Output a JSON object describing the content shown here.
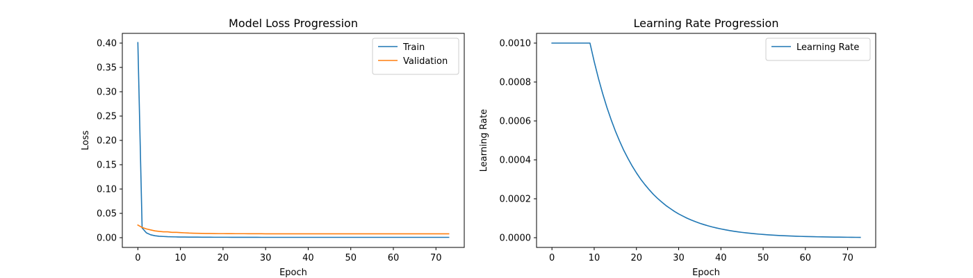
{
  "chart_data": [
    {
      "type": "line",
      "title": "Model Loss Progression",
      "xlabel": "Epoch",
      "ylabel": "Loss",
      "xlim": [
        -3.65,
        76.65
      ],
      "ylim": [
        -0.02,
        0.42
      ],
      "xticks": [
        0,
        10,
        20,
        30,
        40,
        50,
        60,
        70
      ],
      "yticks": [
        0.0,
        0.05,
        0.1,
        0.15,
        0.2,
        0.25,
        0.3,
        0.35,
        0.4
      ],
      "ytick_labels": [
        "0.00",
        "0.05",
        "0.10",
        "0.15",
        "0.20",
        "0.25",
        "0.30",
        "0.35",
        "0.40"
      ],
      "grid": false,
      "legend": "top-right",
      "x": [
        0,
        1,
        2,
        3,
        4,
        5,
        6,
        7,
        8,
        9,
        10,
        11,
        12,
        13,
        14,
        15,
        16,
        17,
        18,
        19,
        20,
        21,
        22,
        23,
        24,
        25,
        26,
        27,
        28,
        29,
        30,
        31,
        32,
        33,
        34,
        35,
        36,
        37,
        38,
        39,
        40,
        41,
        42,
        43,
        44,
        45,
        46,
        47,
        48,
        49,
        50,
        51,
        52,
        53,
        54,
        55,
        56,
        57,
        58,
        59,
        60,
        61,
        62,
        63,
        64,
        65,
        66,
        67,
        68,
        69,
        70,
        71,
        72,
        73
      ],
      "series": [
        {
          "name": "Train",
          "color": "#1f77b4",
          "values": [
            0.401,
            0.02,
            0.01,
            0.006,
            0.004,
            0.003,
            0.0025,
            0.002,
            0.0018,
            0.0016,
            0.0014,
            0.0013,
            0.0012,
            0.0011,
            0.0011,
            0.001,
            0.001,
            0.001,
            0.0009,
            0.0009,
            0.0009,
            0.0009,
            0.0008,
            0.0008,
            0.0008,
            0.0008,
            0.0008,
            0.0008,
            0.0008,
            0.0007,
            0.0007,
            0.0007,
            0.0007,
            0.0007,
            0.0007,
            0.0007,
            0.0007,
            0.0007,
            0.0007,
            0.0007,
            0.0007,
            0.0007,
            0.0007,
            0.0007,
            0.0007,
            0.0007,
            0.0007,
            0.0007,
            0.0007,
            0.0007,
            0.0007,
            0.0007,
            0.0007,
            0.0007,
            0.0007,
            0.0007,
            0.0007,
            0.0007,
            0.0007,
            0.0007,
            0.0007,
            0.0007,
            0.0007,
            0.0007,
            0.0007,
            0.0007,
            0.0007,
            0.0007,
            0.0007,
            0.0007,
            0.0007,
            0.0007,
            0.0007,
            0.0007
          ]
        },
        {
          "name": "Validation",
          "color": "#ff7f0e",
          "values": [
            0.026,
            0.021,
            0.018,
            0.016,
            0.014,
            0.013,
            0.012,
            0.012,
            0.011,
            0.011,
            0.0105,
            0.01,
            0.0095,
            0.0092,
            0.009,
            0.0088,
            0.0087,
            0.0086,
            0.0085,
            0.0084,
            0.0084,
            0.0083,
            0.0083,
            0.0082,
            0.0082,
            0.0082,
            0.0081,
            0.0081,
            0.0081,
            0.0081,
            0.008,
            0.008,
            0.008,
            0.008,
            0.008,
            0.008,
            0.008,
            0.008,
            0.008,
            0.008,
            0.008,
            0.008,
            0.008,
            0.008,
            0.008,
            0.008,
            0.008,
            0.008,
            0.008,
            0.008,
            0.008,
            0.008,
            0.008,
            0.008,
            0.008,
            0.008,
            0.008,
            0.008,
            0.008,
            0.008,
            0.008,
            0.008,
            0.008,
            0.008,
            0.008,
            0.008,
            0.008,
            0.008,
            0.008,
            0.008,
            0.008,
            0.008,
            0.008,
            0.008
          ]
        }
      ]
    },
    {
      "type": "line",
      "title": "Learning Rate Progression",
      "xlabel": "Epoch",
      "ylabel": "Learning Rate",
      "xlim": [
        -3.65,
        76.65
      ],
      "ylim": [
        -5e-05,
        0.00105
      ],
      "xticks": [
        0,
        10,
        20,
        30,
        40,
        50,
        60,
        70
      ],
      "yticks": [
        0.0,
        0.0002,
        0.0004,
        0.0006,
        0.0008,
        0.001
      ],
      "ytick_labels": [
        "0.0000",
        "0.0002",
        "0.0004",
        "0.0006",
        "0.0008",
        "0.0010"
      ],
      "grid": false,
      "legend": "top-right",
      "x": [
        0,
        1,
        2,
        3,
        4,
        5,
        6,
        7,
        8,
        9,
        10,
        11,
        12,
        13,
        14,
        15,
        16,
        17,
        18,
        19,
        20,
        21,
        22,
        23,
        24,
        25,
        26,
        27,
        28,
        29,
        30,
        31,
        32,
        33,
        34,
        35,
        36,
        37,
        38,
        39,
        40,
        41,
        42,
        43,
        44,
        45,
        46,
        47,
        48,
        49,
        50,
        51,
        52,
        53,
        54,
        55,
        56,
        57,
        58,
        59,
        60,
        61,
        62,
        63,
        64,
        65,
        66,
        67,
        68,
        69,
        70,
        71,
        72,
        73
      ],
      "series": [
        {
          "name": "Learning Rate",
          "color": "#1f77b4",
          "values": [
            0.001,
            0.001,
            0.001,
            0.001,
            0.001,
            0.001,
            0.001,
            0.001,
            0.001,
            0.001,
            0.000905,
            0.000819,
            0.000741,
            0.00067,
            0.000607,
            0.000549,
            0.000497,
            0.000449,
            0.000407,
            0.000368,
            0.000333,
            0.000301,
            0.000273,
            0.000247,
            0.000223,
            0.000202,
            0.000183,
            0.000165,
            0.00015,
            0.000135,
            0.000122,
            0.000111,
            0.0001,
            9.07e-05,
            8.21e-05,
            7.43e-05,
            6.72e-05,
            6.08e-05,
            5.5e-05,
            4.98e-05,
            4.51e-05,
            4.08e-05,
            3.69e-05,
            3.34e-05,
            3.02e-05,
            2.73e-05,
            2.47e-05,
            2.24e-05,
            2.02e-05,
            1.83e-05,
            1.66e-05,
            1.5e-05,
            1.36e-05,
            1.23e-05,
            1.11e-05,
            1.01e-05,
            9.1e-06,
            8.2e-06,
            7.5e-06,
            6.7e-06,
            6.1e-06,
            5.5e-06,
            5e-06,
            4.5e-06,
            4.1e-06,
            3.7e-06,
            3.4e-06,
            3e-06,
            2.8e-06,
            2.5e-06,
            2.2e-06,
            2e-06,
            1.8e-06,
            1.7e-06
          ]
        }
      ]
    }
  ]
}
